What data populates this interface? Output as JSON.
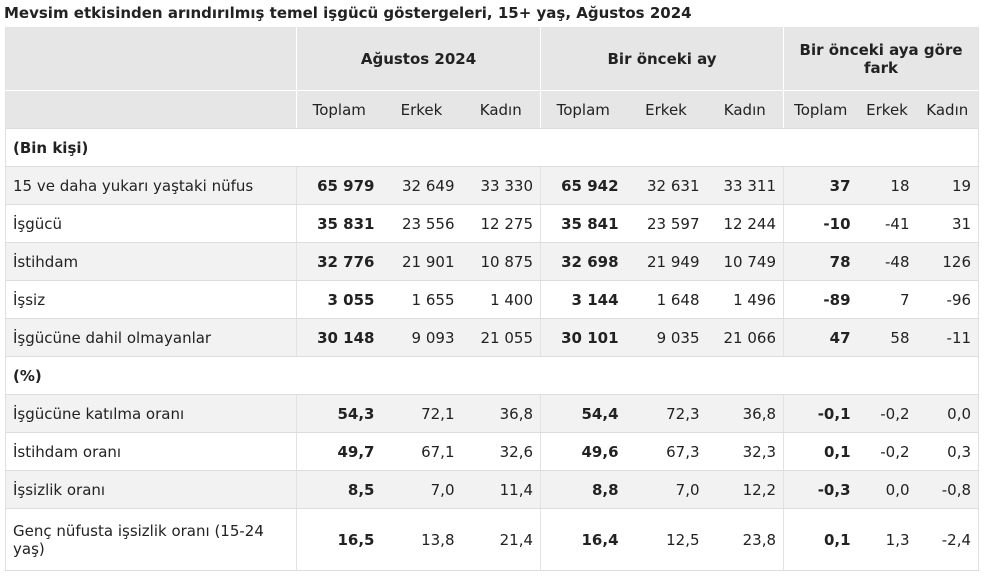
{
  "title": "Mevsim etkisinden arındırılmış temel işgücü göstergeleri, 15+ yaş, Ağustos 2024",
  "header": {
    "groups": [
      "Ağustos 2024",
      "Bir önceki ay",
      "Bir önceki aya göre fark"
    ],
    "sub": [
      "Toplam",
      "Erkek",
      "Kadın"
    ]
  },
  "sections": [
    {
      "label": "(Bin kişi)",
      "rows": [
        {
          "label": "15 ve daha yukarı yaştaki nüfus",
          "values": [
            "65 979",
            "32 649",
            "33 330",
            "65 942",
            "32 631",
            "33 311",
            "37",
            "18",
            "19"
          ]
        },
        {
          "label": "İşgücü",
          "values": [
            "35 831",
            "23 556",
            "12 275",
            "35 841",
            "23 597",
            "12 244",
            "-10",
            "-41",
            "31"
          ]
        },
        {
          "label": "İstihdam",
          "values": [
            "32 776",
            "21 901",
            "10 875",
            "32 698",
            "21 949",
            "10 749",
            "78",
            "-48",
            "126"
          ]
        },
        {
          "label": "İşsiz",
          "values": [
            "3 055",
            "1 655",
            "1 400",
            "3 144",
            "1 648",
            "1 496",
            "-89",
            "7",
            "-96"
          ]
        },
        {
          "label": "İşgücüne dahil olmayanlar",
          "values": [
            "30 148",
            "9 093",
            "21 055",
            "30 101",
            "9 035",
            "21 066",
            "47",
            "58",
            "-11"
          ]
        }
      ]
    },
    {
      "label": "(%)",
      "rows": [
        {
          "label": "İşgücüne katılma oranı",
          "values": [
            "54,3",
            "72,1",
            "36,8",
            "54,4",
            "72,3",
            "36,8",
            "-0,1",
            "-0,2",
            "0,0"
          ]
        },
        {
          "label": "İstihdam oranı",
          "values": [
            "49,7",
            "67,1",
            "32,6",
            "49,6",
            "67,3",
            "32,3",
            "0,1",
            "-0,2",
            "0,3"
          ]
        },
        {
          "label": "İşsizlik oranı",
          "values": [
            "8,5",
            "7,0",
            "11,4",
            "8,8",
            "7,0",
            "12,2",
            "-0,3",
            "0,0",
            "-0,8"
          ]
        },
        {
          "label": "Genç nüfusta işsizlik oranı (15-24 yaş)",
          "values": [
            "16,5",
            "13,8",
            "21,4",
            "16,4",
            "12,5",
            "23,8",
            "0,1",
            "1,3",
            "-2,4"
          ]
        }
      ]
    }
  ]
}
